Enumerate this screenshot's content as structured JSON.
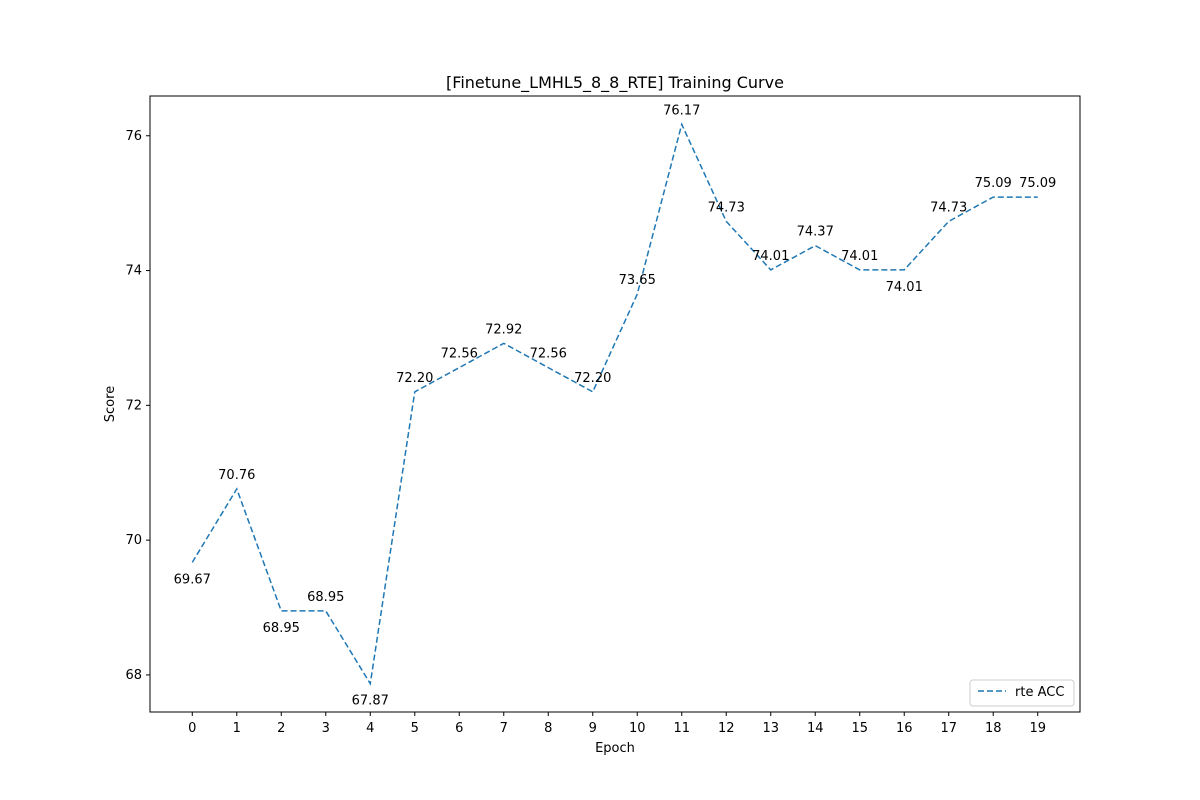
{
  "chart_data": {
    "type": "line",
    "title": "[Finetune_LMHL5_8_8_RTE] Training Curve",
    "xlabel": "Epoch",
    "ylabel": "Score",
    "x": [
      0,
      1,
      2,
      3,
      4,
      5,
      6,
      7,
      8,
      9,
      10,
      11,
      12,
      13,
      14,
      15,
      16,
      17,
      18,
      19
    ],
    "xticks": [
      "0",
      "1",
      "2",
      "3",
      "4",
      "5",
      "6",
      "7",
      "8",
      "9",
      "10",
      "11",
      "12",
      "13",
      "14",
      "15",
      "16",
      "17",
      "18",
      "19"
    ],
    "yticks": [
      68,
      70,
      72,
      74,
      76
    ],
    "ytick_labels": [
      "68",
      "70",
      "72",
      "74",
      "76"
    ],
    "xlim": [
      -0.95,
      19.95
    ],
    "ylim": [
      67.45,
      76.59
    ],
    "grid": false,
    "legend_position": "bottom-right",
    "series": [
      {
        "name": "rte ACC",
        "color": "#1f77b4",
        "line_style": "dashed",
        "values": [
          69.67,
          70.76,
          68.95,
          68.95,
          67.87,
          72.2,
          72.56,
          72.92,
          72.56,
          72.2,
          73.65,
          76.17,
          74.73,
          74.01,
          74.37,
          74.01,
          74.01,
          74.73,
          75.09,
          75.09
        ],
        "labels": [
          "69.67",
          "70.76",
          "68.95",
          "68.95",
          "67.87",
          "72.20",
          "72.56",
          "72.92",
          "72.56",
          "72.20",
          "73.65",
          "76.17",
          "74.73",
          "74.01",
          "74.37",
          "74.01",
          "74.01",
          "74.73",
          "75.09",
          "75.09"
        ],
        "label_positions": [
          "below",
          "above",
          "below",
          "above",
          "below",
          "above",
          "above",
          "above",
          "above",
          "above",
          "above",
          "above",
          "above",
          "above",
          "above",
          "above",
          "below",
          "above",
          "above",
          "above"
        ]
      }
    ]
  }
}
